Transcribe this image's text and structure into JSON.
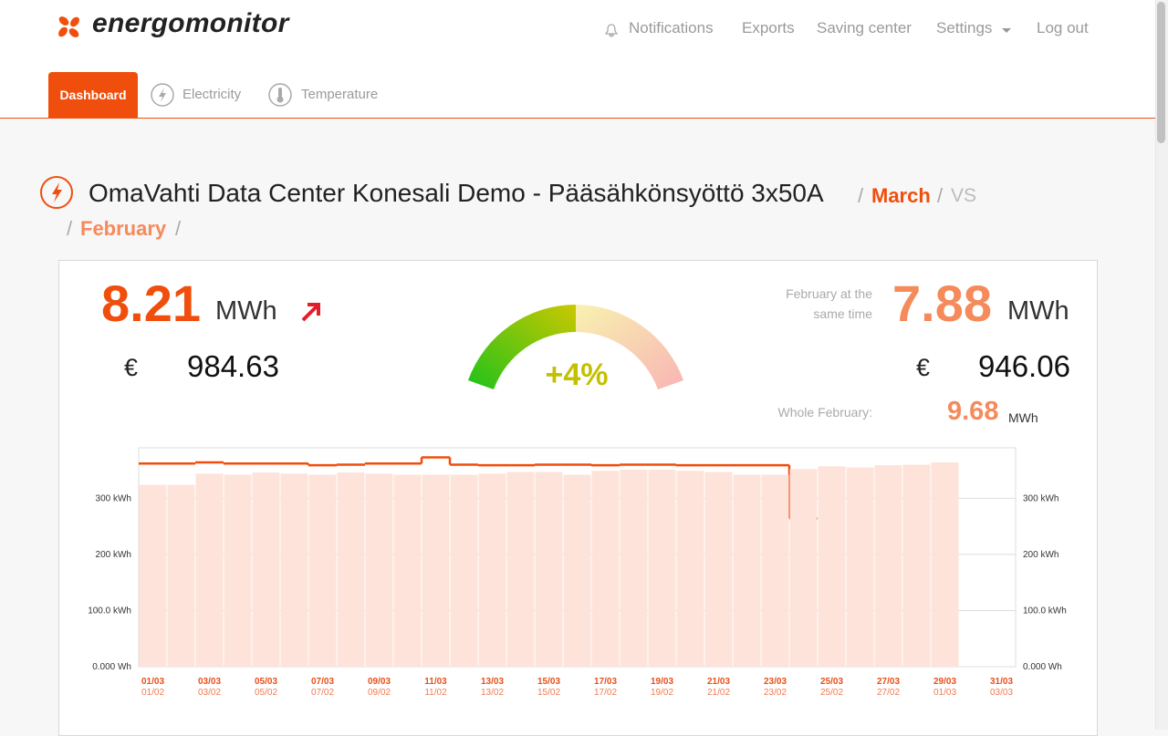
{
  "header": {
    "logo": "energomonitor",
    "nav": [
      "Notifications",
      "Exports",
      "Saving center",
      "Settings",
      "Log out"
    ]
  },
  "tabs": [
    "Dashboard",
    "Electricity",
    "Temperature"
  ],
  "title": {
    "name": "OmaVahti Data Center Konesali Demo - Pääsähkönsyöttö 3x50A",
    "separator": "/",
    "current": "March",
    "vs": "VS",
    "previous": "February"
  },
  "summary": {
    "current_value": "8.21",
    "current_unit": "MWh",
    "current_currency": "€",
    "current_cost": "984.63",
    "change": "+4%",
    "previous_caption": "February at the same time",
    "previous_value": "7.88",
    "previous_unit": "MWh",
    "previous_currency": "€",
    "previous_cost": "946.06",
    "whole_caption": "Whole February:",
    "whole_value": "9.68",
    "whole_unit": "MWh"
  },
  "chart_data": {
    "type": "bar",
    "categories": [
      "01/03",
      null,
      "03/03",
      null,
      "05/03",
      null,
      "07/03",
      null,
      "09/03",
      null,
      "11/03",
      null,
      "13/03",
      null,
      "15/03",
      null,
      "17/03",
      null,
      "19/03",
      null,
      "21/03",
      null,
      "23/03",
      null,
      "25/03",
      null,
      "27/03",
      null,
      "29/03",
      null,
      "31/03"
    ],
    "secondary_categories": [
      "01/02",
      null,
      "03/02",
      null,
      "05/02",
      null,
      "07/02",
      null,
      "09/02",
      null,
      "11/02",
      null,
      "13/02",
      null,
      "15/02",
      null,
      "17/02",
      null,
      "19/02",
      null,
      "21/02",
      null,
      "23/02",
      null,
      "25/02",
      null,
      "27/02",
      null,
      "01/03",
      null,
      "03/03"
    ],
    "series": [
      {
        "type": "line",
        "color": "#f04e0c",
        "values": [
          362,
          362,
          364,
          362,
          362,
          362,
          359,
          360,
          362,
          362,
          373,
          360,
          359,
          359,
          360,
          360,
          359,
          360,
          360,
          359,
          359,
          359,
          359,
          264,
          null,
          null,
          null,
          null,
          null,
          null,
          null
        ]
      },
      {
        "type": "bar",
        "color": "#fde3da",
        "values": [
          324,
          324,
          344,
          342,
          346,
          344,
          342,
          346,
          344,
          342,
          342,
          342,
          344,
          347,
          347,
          342,
          349,
          351,
          351,
          349,
          347,
          342,
          342,
          352,
          357,
          355,
          359,
          360,
          364,
          null,
          null
        ]
      }
    ],
    "ylim": [
      0,
      390
    ],
    "yticks": [
      {
        "value": 0,
        "label": "0.000 Wh"
      },
      {
        "value": 100,
        "label": "100.0 kWh"
      },
      {
        "value": 200,
        "label": "200 kWh"
      },
      {
        "value": 300,
        "label": "300 kWh"
      }
    ],
    "grid": true
  }
}
